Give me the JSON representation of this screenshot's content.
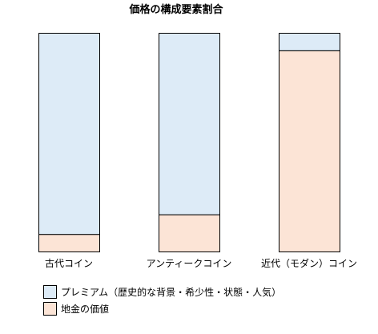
{
  "chart_data": {
    "type": "bar",
    "stacked": true,
    "percent": true,
    "title": "価格の構成要素割合",
    "categories": [
      "古代コイン",
      "アンティークコイン",
      "近代（モダン）コイン"
    ],
    "series": [
      {
        "name": "地金の価値",
        "color": "#fce4d6",
        "values": [
          8,
          17,
          92
        ]
      },
      {
        "name": "プレミアム（歴史的な背景・希少性・状態・人気）",
        "color": "#ddebf7",
        "values": [
          92,
          83,
          8
        ]
      }
    ],
    "ylim": [
      0,
      100
    ],
    "legend_position": "bottom-left",
    "grid": false,
    "edge_color": "#000000"
  }
}
